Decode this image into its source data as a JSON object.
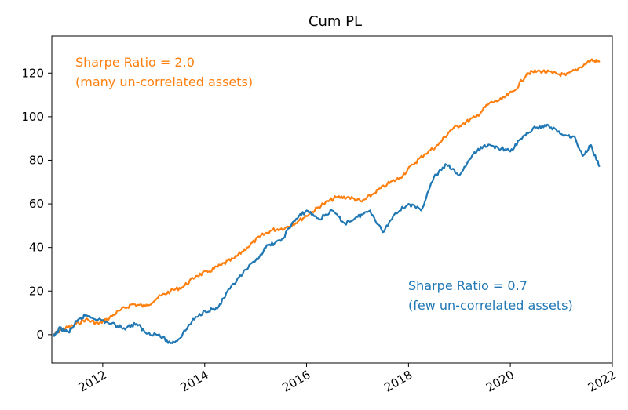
{
  "chart_data": {
    "type": "line",
    "title": "Cum PL",
    "xlabel": "",
    "ylabel": "",
    "xlim": [
      "2011-01-01",
      "2022-01-01"
    ],
    "ylim": [
      -13,
      137
    ],
    "x_ticks": [
      "2012-01-01",
      "2014-01-01",
      "2016-01-01",
      "2018-01-01",
      "2020-01-01",
      "2022-01-01"
    ],
    "x_tick_labels": [
      "2012",
      "2014",
      "2016",
      "2018",
      "2020",
      "2022"
    ],
    "y_ticks": [
      0,
      20,
      40,
      60,
      80,
      100,
      120
    ],
    "y_tick_labels": [
      "0",
      "20",
      "40",
      "60",
      "80",
      "100",
      "120"
    ],
    "grid": false,
    "series": [
      {
        "color": "#ff7f0e",
        "annotation": [
          "Sharpe Ratio = 2.0",
          "(many un-correlated assets)"
        ],
        "points": [
          [
            "2011-01-15",
            0
          ],
          [
            "2011-03-01",
            2
          ],
          [
            "2011-06-01",
            4
          ],
          [
            "2011-09-01",
            7
          ],
          [
            "2011-12-01",
            5
          ],
          [
            "2012-02-01",
            7
          ],
          [
            "2012-05-01",
            11
          ],
          [
            "2012-08-01",
            14
          ],
          [
            "2012-11-01",
            13
          ],
          [
            "2013-02-01",
            17
          ],
          [
            "2013-05-01",
            20
          ],
          [
            "2013-08-01",
            22
          ],
          [
            "2013-11-01",
            27
          ],
          [
            "2014-02-01",
            29
          ],
          [
            "2014-05-01",
            32
          ],
          [
            "2014-08-01",
            35
          ],
          [
            "2014-11-01",
            40
          ],
          [
            "2015-02-01",
            45
          ],
          [
            "2015-05-01",
            48
          ],
          [
            "2015-08-01",
            49
          ],
          [
            "2015-11-01",
            52
          ],
          [
            "2016-02-01",
            56
          ],
          [
            "2016-05-01",
            60
          ],
          [
            "2016-08-01",
            63
          ],
          [
            "2016-11-01",
            63
          ],
          [
            "2017-02-01",
            61
          ],
          [
            "2017-05-01",
            65
          ],
          [
            "2017-08-01",
            69
          ],
          [
            "2017-11-01",
            72
          ],
          [
            "2018-02-01",
            78
          ],
          [
            "2018-05-01",
            83
          ],
          [
            "2018-08-01",
            87
          ],
          [
            "2018-11-01",
            94
          ],
          [
            "2019-02-01",
            97
          ],
          [
            "2019-05-01",
            100
          ],
          [
            "2019-08-01",
            106
          ],
          [
            "2019-11-01",
            108
          ],
          [
            "2020-02-01",
            112
          ],
          [
            "2020-05-01",
            120
          ],
          [
            "2020-08-01",
            121
          ],
          [
            "2020-11-01",
            120
          ],
          [
            "2021-02-01",
            119
          ],
          [
            "2021-05-01",
            122
          ],
          [
            "2021-08-01",
            126
          ],
          [
            "2021-10-01",
            125
          ]
        ]
      },
      {
        "color": "#1f77b4",
        "annotation": [
          "Sharpe Ratio = 0.7",
          "(few un-correlated assets)"
        ],
        "points": [
          [
            "2011-01-15",
            -1
          ],
          [
            "2011-03-01",
            3
          ],
          [
            "2011-05-01",
            1
          ],
          [
            "2011-07-01",
            6
          ],
          [
            "2011-09-01",
            9
          ],
          [
            "2011-12-01",
            7
          ],
          [
            "2012-03-01",
            5
          ],
          [
            "2012-06-01",
            3
          ],
          [
            "2012-09-01",
            5
          ],
          [
            "2012-11-01",
            1
          ],
          [
            "2013-02-01",
            0
          ],
          [
            "2013-05-01",
            -4
          ],
          [
            "2013-07-01",
            -2
          ],
          [
            "2013-10-01",
            6
          ],
          [
            "2014-01-01",
            11
          ],
          [
            "2014-04-01",
            12
          ],
          [
            "2014-07-01",
            21
          ],
          [
            "2014-10-01",
            28
          ],
          [
            "2015-01-01",
            34
          ],
          [
            "2015-04-01",
            41
          ],
          [
            "2015-07-01",
            43
          ],
          [
            "2015-10-01",
            52
          ],
          [
            "2016-01-01",
            57
          ],
          [
            "2016-04-01",
            53
          ],
          [
            "2016-07-01",
            57
          ],
          [
            "2016-10-01",
            51
          ],
          [
            "2017-01-01",
            54
          ],
          [
            "2017-04-01",
            57
          ],
          [
            "2017-07-01",
            47
          ],
          [
            "2017-10-01",
            56
          ],
          [
            "2018-01-01",
            60
          ],
          [
            "2018-04-01",
            57
          ],
          [
            "2018-07-01",
            72
          ],
          [
            "2018-10-01",
            78
          ],
          [
            "2019-01-01",
            73
          ],
          [
            "2019-04-01",
            82
          ],
          [
            "2019-07-01",
            87
          ],
          [
            "2019-10-01",
            86
          ],
          [
            "2020-01-01",
            84
          ],
          [
            "2020-04-01",
            91
          ],
          [
            "2020-07-01",
            95
          ],
          [
            "2020-10-01",
            96
          ],
          [
            "2021-01-01",
            92
          ],
          [
            "2021-04-01",
            91
          ],
          [
            "2021-06-01",
            82
          ],
          [
            "2021-08-01",
            87
          ],
          [
            "2021-10-01",
            77
          ]
        ]
      }
    ]
  }
}
